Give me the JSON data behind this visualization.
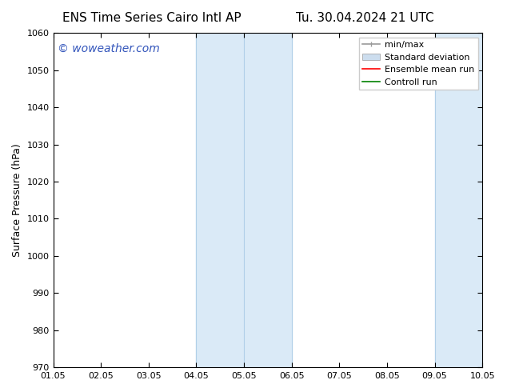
{
  "title_left": "ENS Time Series Cairo Intl AP",
  "title_right": "Tu. 30.04.2024 21 UTC",
  "ylabel": "Surface Pressure (hPa)",
  "xlabel_ticks": [
    "01.05",
    "02.05",
    "03.05",
    "04.05",
    "05.05",
    "06.05",
    "07.05",
    "08.05",
    "09.05",
    "10.05"
  ],
  "ylim": [
    970,
    1060
  ],
  "xlim": [
    0,
    9
  ],
  "yticks": [
    970,
    980,
    990,
    1000,
    1010,
    1020,
    1030,
    1040,
    1050,
    1060
  ],
  "shaded_regions": [
    {
      "x_start": 3.0,
      "x_end": 5.0,
      "color": "#daeaf7"
    },
    {
      "x_start": 8.0,
      "x_end": 9.0,
      "color": "#daeaf7"
    }
  ],
  "shaded_region_borders": [
    {
      "x": 3.0
    },
    {
      "x": 4.0
    },
    {
      "x": 5.0
    },
    {
      "x": 8.0
    },
    {
      "x": 9.0
    }
  ],
  "border_color": "#b0cfe8",
  "watermark_text": "© woweather.com",
  "watermark_color": "#3355bb",
  "watermark_fontsize": 10,
  "legend_entries": [
    {
      "label": "min/max",
      "color": "#999999"
    },
    {
      "label": "Standard deviation",
      "color": "#ccddee"
    },
    {
      "label": "Ensemble mean run",
      "color": "red"
    },
    {
      "label": "Controll run",
      "color": "green"
    }
  ],
  "background_color": "#ffffff",
  "title_fontsize": 11,
  "tick_fontsize": 8,
  "ylabel_fontsize": 9,
  "legend_fontsize": 8
}
